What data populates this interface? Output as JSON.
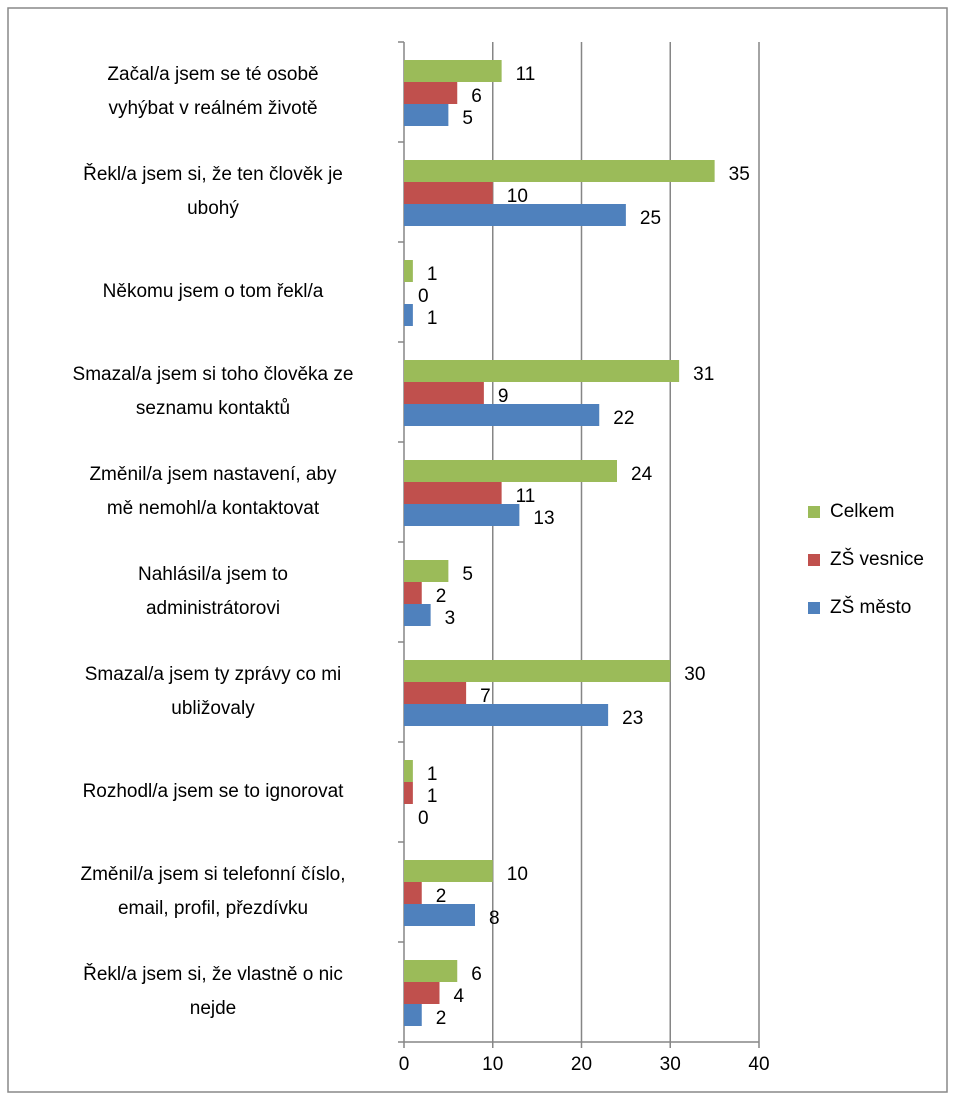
{
  "chart_data": {
    "type": "barh",
    "categories": [
      [
        "Začal/a jsem se té osobě",
        "vyhýbat v reálném životě"
      ],
      [
        "Řekl/a jsem si, že ten člověk je",
        "ubohý"
      ],
      [
        "Někomu jsem o tom řekl/a"
      ],
      [
        "Smazal/a jsem si toho člověka ze",
        "seznamu kontaktů"
      ],
      [
        "Změnil/a jsem nastavení, aby",
        "mě nemohl/a kontaktovat"
      ],
      [
        "Nahlásil/a jsem to",
        "administrátorovi"
      ],
      [
        "Smazal/a jsem ty zprávy co mi",
        "ubližovaly"
      ],
      [
        "Rozhodl/a jsem se to ignorovat"
      ],
      [
        "Změnil/a jsem si telefonní číslo,",
        "email, profil, přezdívku"
      ],
      [
        "Řekl/a jsem si, že vlastně o nic",
        "nejde"
      ]
    ],
    "series": [
      {
        "name": "Celkem",
        "color": "#9bbb59",
        "values": [
          11,
          35,
          1,
          31,
          24,
          5,
          30,
          1,
          10,
          6
        ]
      },
      {
        "name": "ZŠ vesnice",
        "color": "#c0504d",
        "values": [
          6,
          10,
          0,
          9,
          11,
          2,
          7,
          1,
          2,
          4
        ]
      },
      {
        "name": "ZŠ město",
        "color": "#4f81bd",
        "values": [
          5,
          25,
          1,
          22,
          13,
          3,
          23,
          0,
          8,
          2
        ]
      }
    ],
    "xlim": [
      0,
      40
    ],
    "xticks": [
      0,
      10,
      20,
      30,
      40
    ],
    "grid": true,
    "legend": "right"
  }
}
